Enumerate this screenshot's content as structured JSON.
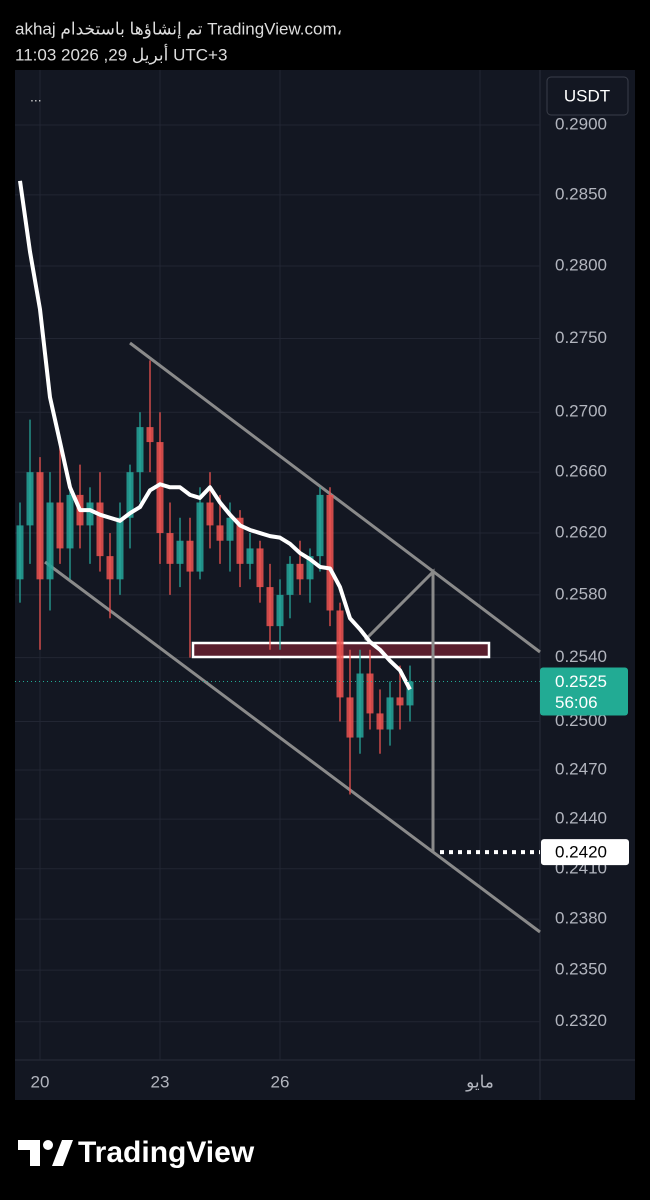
{
  "header": {
    "line1": "akhaj تم إنشاؤها باستخدام TradingView.com،",
    "line2": "11:03 2026 ,29 أبريل UTC+3"
  },
  "chart_data": {
    "type": "candlestick",
    "currency": "USDT",
    "menu": "...",
    "log_scale": true,
    "grid": true,
    "up_color": "#26a69a",
    "down_color": "#ef5350",
    "x": [
      19.5,
      19.75,
      20,
      20.25,
      20.5,
      20.75,
      21,
      21.25,
      21.5,
      21.75,
      22,
      22.25,
      22.5,
      22.75,
      23,
      23.25,
      23.5,
      23.75,
      24,
      24.25,
      24.5,
      24.75,
      25,
      25.25,
      25.5,
      25.75,
      26,
      26.25,
      26.5,
      26.75,
      27,
      27.25,
      27.5,
      27.75,
      28,
      28.25,
      28.5,
      28.75,
      29,
      29.25
    ],
    "open": [
      0.259,
      0.2625,
      0.266,
      0.259,
      0.264,
      0.261,
      0.2645,
      0.2625,
      0.264,
      0.2605,
      0.259,
      0.263,
      0.266,
      0.269,
      0.268,
      0.262,
      0.26,
      0.2615,
      0.2595,
      0.264,
      0.2625,
      0.2615,
      0.263,
      0.26,
      0.261,
      0.2585,
      0.256,
      0.258,
      0.26,
      0.259,
      0.2605,
      0.2645,
      0.257,
      0.2515,
      0.249,
      0.253,
      0.2505,
      0.2495,
      0.2515,
      0.251
    ],
    "high": [
      0.264,
      0.2695,
      0.267,
      0.266,
      0.268,
      0.2655,
      0.2665,
      0.265,
      0.266,
      0.262,
      0.264,
      0.2665,
      0.27,
      0.2735,
      0.27,
      0.264,
      0.263,
      0.263,
      0.265,
      0.266,
      0.2645,
      0.264,
      0.2635,
      0.262,
      0.2615,
      0.26,
      0.259,
      0.2605,
      0.2615,
      0.261,
      0.265,
      0.265,
      0.2575,
      0.2545,
      0.2545,
      0.2545,
      0.252,
      0.2525,
      0.2535,
      0.2535
    ],
    "low": [
      0.2575,
      0.26,
      0.2545,
      0.257,
      0.26,
      0.259,
      0.261,
      0.26,
      0.2595,
      0.2565,
      0.258,
      0.261,
      0.264,
      0.266,
      0.26,
      0.258,
      0.2585,
      0.254,
      0.259,
      0.261,
      0.26,
      0.2595,
      0.2585,
      0.259,
      0.2575,
      0.2545,
      0.2545,
      0.2565,
      0.258,
      0.2575,
      0.2595,
      0.256,
      0.25,
      0.2455,
      0.248,
      0.2495,
      0.248,
      0.2485,
      0.2495,
      0.25
    ],
    "close": [
      0.2625,
      0.266,
      0.259,
      0.264,
      0.261,
      0.2645,
      0.2625,
      0.264,
      0.2605,
      0.259,
      0.263,
      0.266,
      0.269,
      0.268,
      0.262,
      0.26,
      0.2615,
      0.2595,
      0.264,
      0.2625,
      0.2615,
      0.263,
      0.26,
      0.261,
      0.2585,
      0.256,
      0.258,
      0.26,
      0.259,
      0.2605,
      0.2645,
      0.257,
      0.2515,
      0.249,
      0.253,
      0.2505,
      0.2495,
      0.2515,
      0.251,
      0.2525
    ],
    "ma": {
      "color": "#ffffff",
      "values": [
        0.286,
        0.281,
        0.277,
        0.271,
        0.268,
        0.265,
        0.2635,
        0.2635,
        0.2632,
        0.263,
        0.2628,
        0.2633,
        0.2637,
        0.2648,
        0.2652,
        0.265,
        0.265,
        0.2645,
        0.2643,
        0.265,
        0.264,
        0.2632,
        0.2625,
        0.2622,
        0.262,
        0.2618,
        0.2617,
        0.2613,
        0.2607,
        0.2603,
        0.2598,
        0.2597,
        0.2585,
        0.2565,
        0.2558,
        0.255,
        0.2545,
        0.2538,
        0.2532,
        0.252
      ]
    },
    "last_price": 0.2525,
    "countdown": "56:06",
    "target": {
      "value": 0.242,
      "label": "0.2420"
    },
    "xlim": [
      19.375,
      32.5
    ],
    "xticks": [
      20,
      23,
      26,
      {
        "value": 31,
        "label": "مايو"
      }
    ],
    "ylim": [
      0.2298,
      0.294
    ],
    "yticks": [
      {
        "value": 0.29,
        "label": "0.2900"
      },
      {
        "value": 0.285,
        "label": "0.2850"
      },
      {
        "value": 0.28,
        "label": "0.2800"
      },
      {
        "value": 0.275,
        "label": "0.2750"
      },
      {
        "value": 0.27,
        "label": "0.2700"
      },
      {
        "value": 0.266,
        "label": "0.2660"
      },
      {
        "value": 0.262,
        "label": "0.2620"
      },
      {
        "value": 0.258,
        "label": "0.2580"
      },
      {
        "value": 0.254,
        "label": "0.2540"
      },
      {
        "value": 0.25,
        "label": "0.2500"
      },
      {
        "value": 0.247,
        "label": "0.2470"
      },
      {
        "value": 0.244,
        "label": "0.2440"
      },
      {
        "value": 0.241,
        "label": "0.2410"
      },
      {
        "value": 0.238,
        "label": "0.2380"
      },
      {
        "value": 0.235,
        "label": "0.2350"
      },
      {
        "value": 0.232,
        "label": "0.2320"
      }
    ]
  },
  "footer": {
    "brand": "TradingView"
  }
}
